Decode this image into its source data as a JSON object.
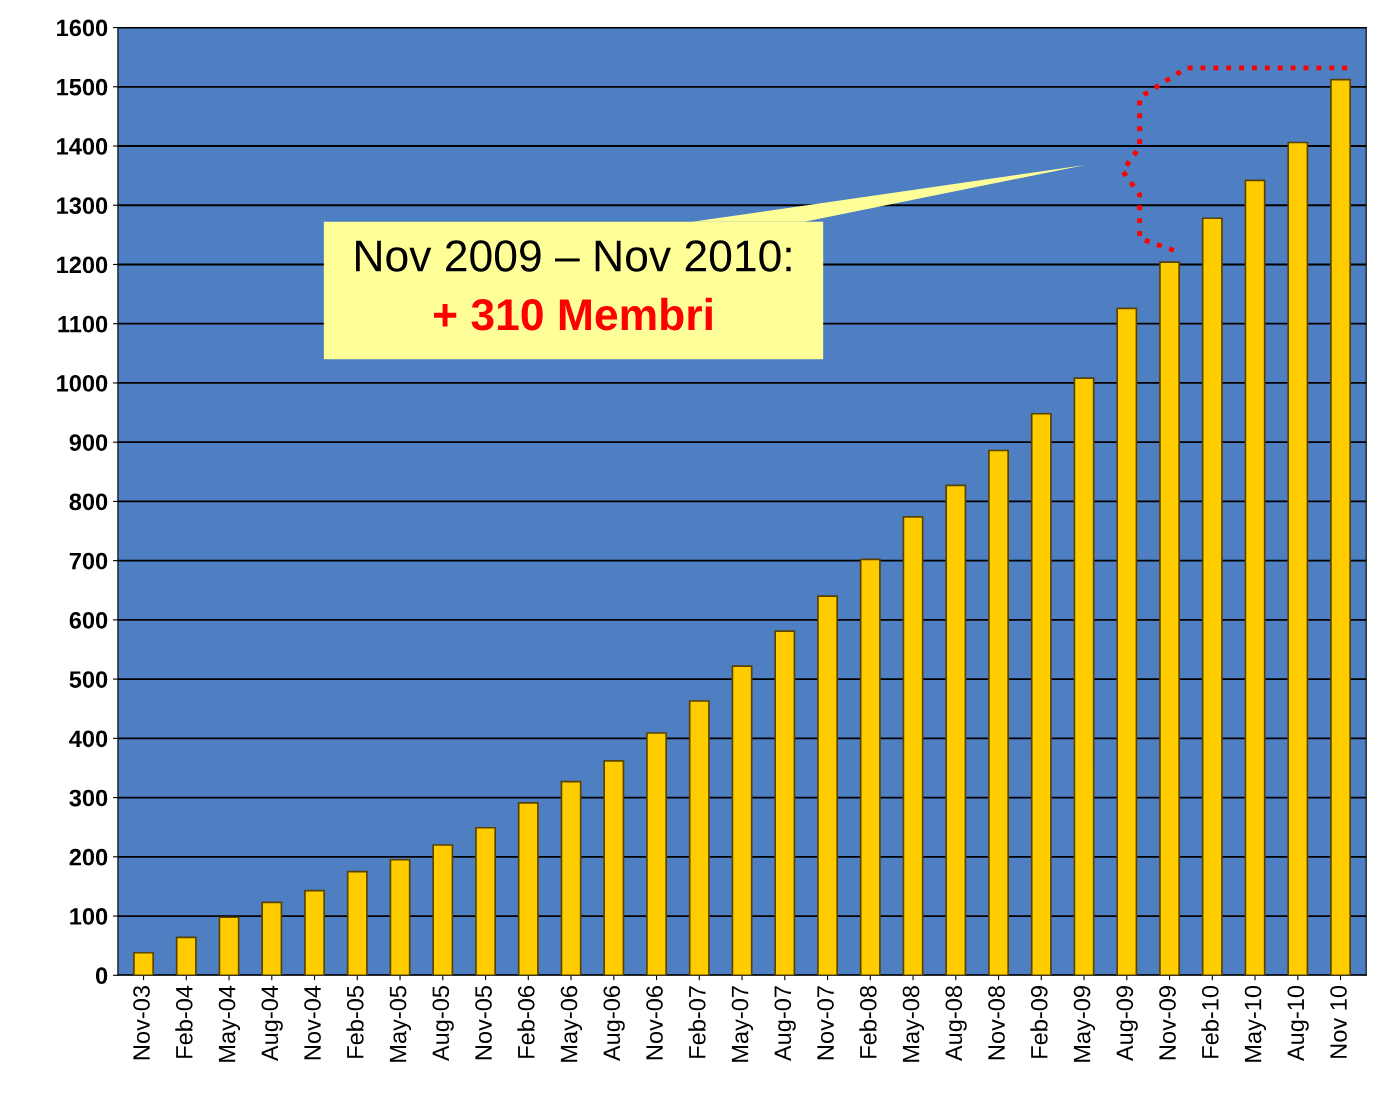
{
  "chart_data": {
    "type": "bar",
    "categories": [
      "Nov-03",
      "Feb-04",
      "May-04",
      "Aug-04",
      "Nov-04",
      "Feb-05",
      "May-05",
      "Aug-05",
      "Nov-05",
      "Feb-06",
      "May-06",
      "Aug-06",
      "Nov-06",
      "Feb-07",
      "May-07",
      "Aug-07",
      "Nov-07",
      "Feb-08",
      "May-08",
      "Aug-08",
      "Nov-08",
      "Feb-09",
      "May-09",
      "Aug-09",
      "Nov-09",
      "Feb-10",
      "May-10",
      "Aug-10",
      "Nov 10"
    ],
    "values": [
      38,
      64,
      98,
      123,
      143,
      175,
      195,
      220,
      249,
      291,
      327,
      362,
      409,
      463,
      522,
      581,
      640,
      702,
      774,
      827,
      886,
      948,
      1008,
      1126,
      1204,
      1278,
      1342,
      1406,
      1512
    ],
    "color": "#ffcc00",
    "ylim": [
      0,
      1600
    ],
    "yticks": [
      0,
      100,
      200,
      300,
      400,
      500,
      600,
      700,
      800,
      900,
      1000,
      1100,
      1200,
      1300,
      1400,
      1500,
      1600
    ],
    "grid": "y",
    "annotations": [
      "Nov 2009 – Nov 2010:",
      "+ 310 Membri"
    ]
  }
}
